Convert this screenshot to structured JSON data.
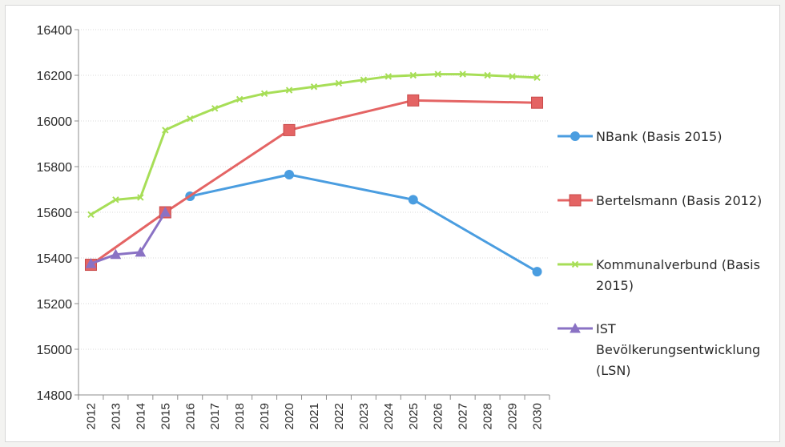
{
  "chart_data": {
    "type": "line",
    "title": "",
    "xlabel": "",
    "ylabel": "",
    "ylim": [
      14800,
      16400
    ],
    "yticks": [
      "14800",
      "15000",
      "15200",
      "15400",
      "15600",
      "15800",
      "16000",
      "16200",
      "16400"
    ],
    "categories": [
      "2012",
      "2013",
      "2014",
      "2015",
      "2016",
      "2017",
      "2018",
      "2019",
      "2020",
      "2021",
      "2022",
      "2023",
      "2024",
      "2025",
      "2026",
      "2027",
      "2028",
      "2029",
      "2030"
    ],
    "grid": true,
    "legend_position": "right",
    "series": [
      {
        "name": "NBank (Basis 2015)",
        "legend_lines": [
          "NBank (Basis 2015)"
        ],
        "color": "#4a9de0",
        "marker": "circle",
        "points": [
          [
            2016,
            15670
          ],
          [
            2020,
            15765
          ],
          [
            2025,
            15655
          ],
          [
            2030,
            15340
          ]
        ]
      },
      {
        "name": "Bertelsmann (Basis 2012)",
        "legend_lines": [
          "Bertelsmann (Basis 2012)"
        ],
        "color": "#e46464",
        "marker": "square",
        "points": [
          [
            2012,
            15370
          ],
          [
            2015,
            15600
          ],
          [
            2020,
            15960
          ],
          [
            2025,
            16090
          ],
          [
            2030,
            16080
          ]
        ]
      },
      {
        "name": "Kommunalverbund (Basis 2015)",
        "legend_lines": [
          "Kommunalverbund (Basis",
          "2015)"
        ],
        "color": "#a7de57",
        "marker": "x",
        "points": [
          [
            2012,
            15590
          ],
          [
            2013,
            15655
          ],
          [
            2014,
            15665
          ],
          [
            2015,
            15960
          ],
          [
            2016,
            16010
          ],
          [
            2017,
            16055
          ],
          [
            2018,
            16095
          ],
          [
            2019,
            16120
          ],
          [
            2020,
            16135
          ],
          [
            2021,
            16150
          ],
          [
            2022,
            16165
          ],
          [
            2023,
            16180
          ],
          [
            2024,
            16195
          ],
          [
            2025,
            16200
          ],
          [
            2026,
            16205
          ],
          [
            2027,
            16205
          ],
          [
            2028,
            16200
          ],
          [
            2029,
            16195
          ],
          [
            2030,
            16190
          ]
        ]
      },
      {
        "name": "IST Bevölkerungsentwicklung (LSN)",
        "legend_lines": [
          "IST",
          "Bevölkerungsentwicklung",
          "(LSN)"
        ],
        "color": "#8a72c4",
        "marker": "triangle",
        "points": [
          [
            2012,
            15375
          ],
          [
            2013,
            15415
          ],
          [
            2014,
            15425
          ],
          [
            2015,
            15600
          ]
        ]
      }
    ]
  }
}
